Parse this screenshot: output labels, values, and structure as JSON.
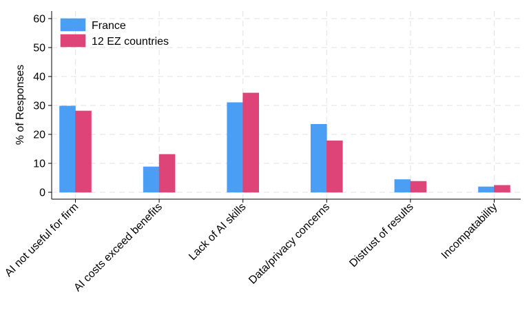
{
  "chart_data": {
    "type": "bar",
    "title": "",
    "xlabel": "",
    "ylabel": "% of Responses",
    "ylim": [
      0,
      62
    ],
    "yticks": [
      0,
      10,
      20,
      30,
      40,
      50,
      60
    ],
    "grid": true,
    "legend_position": "top-left",
    "categories": [
      "AI not useful for firm",
      "AI costs exceed benefits",
      "Lack of AI skills",
      "Data/privacy concerns",
      "Distrust of results",
      "Incompatability"
    ],
    "series": [
      {
        "name": "France",
        "color": "#4a9ff5",
        "values": [
          29.8,
          8.8,
          31.0,
          23.5,
          4.4,
          1.9
        ]
      },
      {
        "name": "12 EZ countries",
        "color": "#df4479",
        "values": [
          28.1,
          13.1,
          34.3,
          17.8,
          3.8,
          2.4
        ]
      }
    ]
  }
}
